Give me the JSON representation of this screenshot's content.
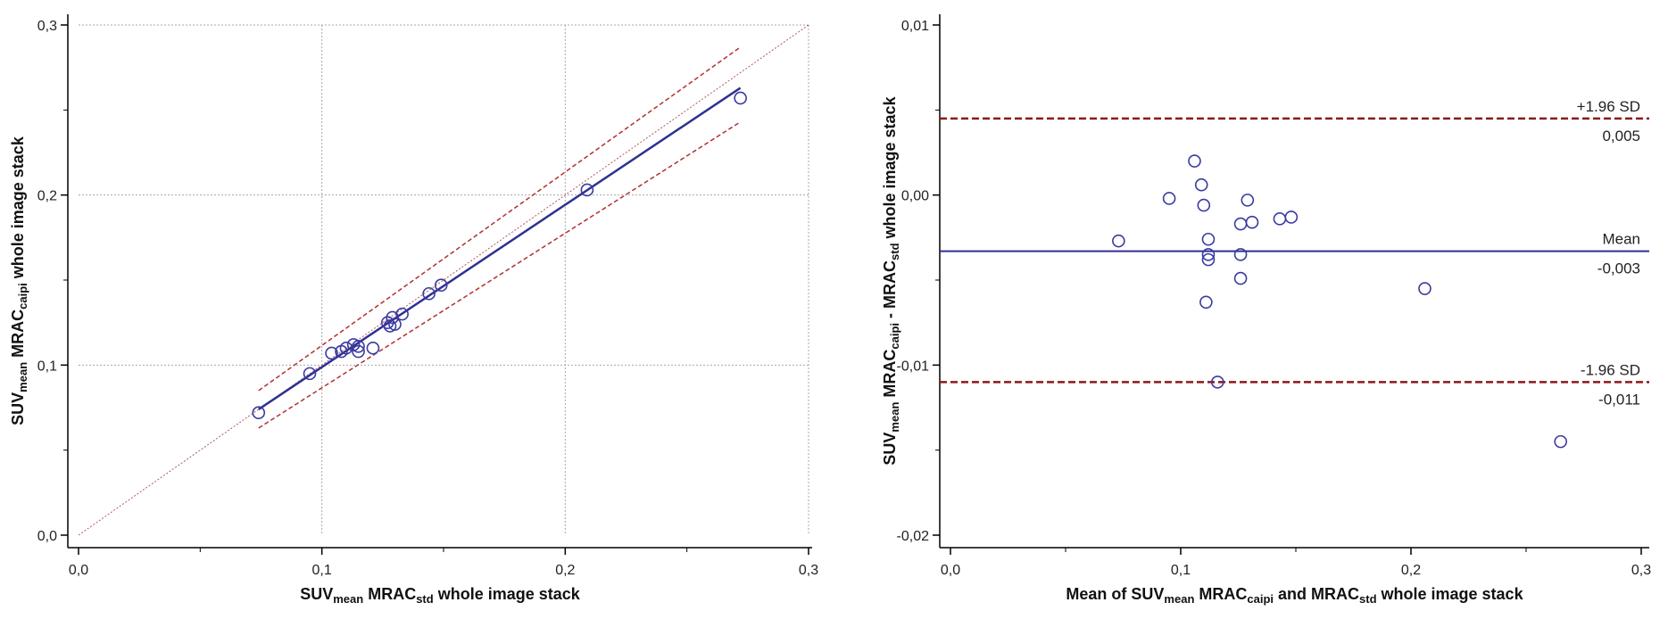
{
  "chart_data": [
    {
      "type": "scatter",
      "title": "",
      "xlabel": {
        "parts": [
          {
            "text": "SUV"
          },
          {
            "text": "mean",
            "sub": true
          },
          {
            "text": " MRAC"
          },
          {
            "text": "std",
            "sub": true
          },
          {
            "text": " whole image stack"
          }
        ]
      },
      "ylabel": {
        "parts": [
          {
            "text": "SUV"
          },
          {
            "text": "mean",
            "sub": true
          },
          {
            "text": " MRAC"
          },
          {
            "text": "caipi",
            "sub": true
          },
          {
            "text": " whole image stack"
          }
        ]
      },
      "xlim": [
        0.0,
        0.3
      ],
      "ylim": [
        0.0,
        0.3
      ],
      "xticks": [
        0.0,
        0.1,
        0.2,
        0.3
      ],
      "yticks": [
        0.0,
        0.1,
        0.2,
        0.3
      ],
      "xtick_labels": [
        "0,0",
        "0,1",
        "0,2",
        "0,3"
      ],
      "ytick_labels": [
        "0,0",
        "0,1",
        "0,2",
        "0,3"
      ],
      "grid": true,
      "points": [
        {
          "x": 0.074,
          "y": 0.072
        },
        {
          "x": 0.095,
          "y": 0.095
        },
        {
          "x": 0.104,
          "y": 0.107
        },
        {
          "x": 0.108,
          "y": 0.108
        },
        {
          "x": 0.11,
          "y": 0.11
        },
        {
          "x": 0.113,
          "y": 0.112
        },
        {
          "x": 0.115,
          "y": 0.111
        },
        {
          "x": 0.115,
          "y": 0.108
        },
        {
          "x": 0.121,
          "y": 0.11
        },
        {
          "x": 0.127,
          "y": 0.125
        },
        {
          "x": 0.128,
          "y": 0.123
        },
        {
          "x": 0.129,
          "y": 0.128
        },
        {
          "x": 0.13,
          "y": 0.124
        },
        {
          "x": 0.133,
          "y": 0.13
        },
        {
          "x": 0.144,
          "y": 0.142
        },
        {
          "x": 0.149,
          "y": 0.147
        },
        {
          "x": 0.209,
          "y": 0.203
        },
        {
          "x": 0.272,
          "y": 0.257
        }
      ],
      "identity_line": {
        "x": [
          0.0,
          0.3
        ],
        "y": [
          0.0,
          0.3
        ]
      },
      "regression_line": {
        "x": [
          0.074,
          0.272
        ],
        "y": [
          0.074,
          0.263
        ]
      },
      "confidence_upper": {
        "x": [
          0.074,
          0.272
        ],
        "y": [
          0.085,
          0.287
        ]
      },
      "confidence_lower": {
        "x": [
          0.074,
          0.272
        ],
        "y": [
          0.063,
          0.243
        ]
      }
    },
    {
      "type": "scatter",
      "title": "",
      "xlabel": {
        "parts": [
          {
            "text": "Mean of SUV"
          },
          {
            "text": "mean",
            "sub": true
          },
          {
            "text": " MRAC"
          },
          {
            "text": "caipi",
            "sub": true
          },
          {
            "text": " and MRAC"
          },
          {
            "text": "std",
            "sub": true
          },
          {
            "text": " whole image stack"
          }
        ]
      },
      "ylabel": {
        "parts": [
          {
            "text": "SUV"
          },
          {
            "text": "mean",
            "sub": true
          },
          {
            "text": " MRAC"
          },
          {
            "text": "caipi",
            "sub": true
          },
          {
            "text": " - MRAC"
          },
          {
            "text": "std",
            "sub": true
          },
          {
            "text": " whole image stack"
          }
        ]
      },
      "xlim": [
        0.0,
        0.3
      ],
      "ylim": [
        -0.02,
        0.01
      ],
      "xticks": [
        0.0,
        0.1,
        0.2,
        0.3
      ],
      "yticks": [
        -0.02,
        -0.01,
        0.0,
        0.01
      ],
      "xtick_labels": [
        "0,0",
        "0,1",
        "0,2",
        "0,3"
      ],
      "ytick_labels": [
        "-0,02",
        "-0,01",
        "0,00",
        "0,01"
      ],
      "grid": false,
      "points": [
        {
          "x": 0.073,
          "y": -0.0027
        },
        {
          "x": 0.095,
          "y": -0.0002
        },
        {
          "x": 0.106,
          "y": 0.002
        },
        {
          "x": 0.109,
          "y": 0.0006
        },
        {
          "x": 0.11,
          "y": -0.0006
        },
        {
          "x": 0.111,
          "y": -0.0063
        },
        {
          "x": 0.112,
          "y": -0.0026
        },
        {
          "x": 0.112,
          "y": -0.0035
        },
        {
          "x": 0.112,
          "y": -0.0038
        },
        {
          "x": 0.116,
          "y": -0.011
        },
        {
          "x": 0.126,
          "y": -0.0017
        },
        {
          "x": 0.126,
          "y": -0.0035
        },
        {
          "x": 0.126,
          "y": -0.0049
        },
        {
          "x": 0.129,
          "y": -0.0003
        },
        {
          "x": 0.131,
          "y": -0.0016
        },
        {
          "x": 0.143,
          "y": -0.0014
        },
        {
          "x": 0.148,
          "y": -0.0013
        },
        {
          "x": 0.206,
          "y": -0.0055
        },
        {
          "x": 0.265,
          "y": -0.0145
        }
      ],
      "reference_lines": [
        {
          "name": "upper-sd",
          "y": 0.0045,
          "label": "+1.96 SD",
          "value_label": "0,005",
          "style": "dashed"
        },
        {
          "name": "mean",
          "y": -0.0033,
          "label": "Mean",
          "value_label": "-0,003",
          "style": "solid"
        },
        {
          "name": "lower-sd",
          "y": -0.011,
          "label": "-1.96 SD",
          "value_label": "-0,011",
          "style": "dashed"
        }
      ]
    }
  ],
  "colors": {
    "points": "#3a3aa0",
    "regression": "#2e3192",
    "identity": "#b05a5a",
    "confidence": "#b03030",
    "sd_lines": "#8b1a1a",
    "mean_line": "#2e3192",
    "grid": "#a8a8a8",
    "axis": "#000000"
  }
}
